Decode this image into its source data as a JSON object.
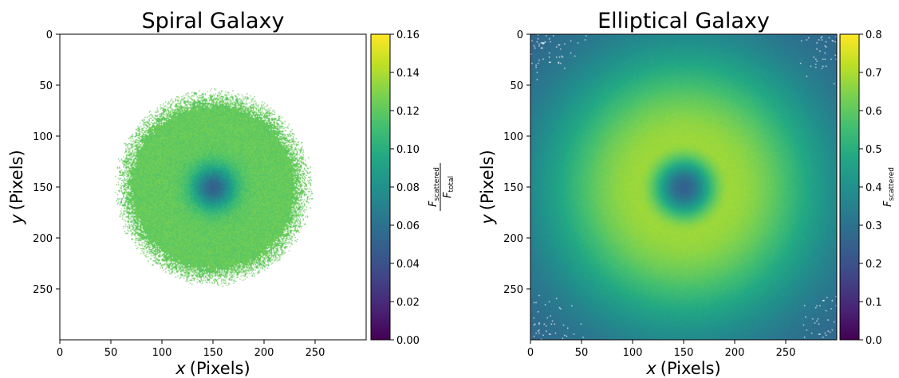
{
  "chart_data": [
    {
      "type": "heatmap",
      "title": "Spiral Galaxy",
      "xlabel": "x (Pixels)",
      "ylabel": "y (Pixels)",
      "xlabel_var": "x",
      "xlabel_unit": "(Pixels)",
      "ylabel_var": "y",
      "ylabel_unit": "(Pixels)",
      "xlim": [
        0,
        300
      ],
      "ylim": [
        300,
        0
      ],
      "x_ticks": [
        0,
        50,
        100,
        150,
        200,
        250
      ],
      "y_ticks": [
        0,
        50,
        100,
        150,
        200,
        250
      ],
      "image": {
        "center": [
          150,
          150
        ],
        "disk_radius": 88,
        "edge_scatter": 10,
        "base_value": 0.122,
        "core_value": 0.05,
        "core_radius": 14,
        "outside_value": null
      },
      "colorbar": {
        "label": "F_scattered / F_total",
        "label_numerator": "F",
        "label_numerator_sub": "scattered",
        "label_denominator": "F",
        "label_denominator_sub": "total",
        "range": [
          0.0,
          0.16
        ],
        "ticks": [
          "0.00",
          "0.02",
          "0.04",
          "0.06",
          "0.08",
          "0.10",
          "0.12",
          "0.14",
          "0.16"
        ],
        "colormap": "viridis"
      }
    },
    {
      "type": "heatmap",
      "title": "Elliptical Galaxy",
      "xlabel": "x (Pixels)",
      "ylabel": "y (Pixels)",
      "xlabel_var": "x",
      "xlabel_unit": "(Pixels)",
      "ylabel_var": "y",
      "ylabel_unit": "(Pixels)",
      "xlim": [
        0,
        300
      ],
      "ylim": [
        300,
        0
      ],
      "x_ticks": [
        0,
        50,
        100,
        150,
        200,
        250
      ],
      "y_ticks": [
        0,
        50,
        100,
        150,
        200,
        250
      ],
      "image": {
        "center": [
          150,
          150
        ],
        "peak_value": 0.68,
        "peak_radius": 45,
        "core_value": 0.25,
        "edge_value": 0.25,
        "corner_white_pixels": true
      },
      "colorbar": {
        "label": "F_scattered",
        "label_main": "F",
        "label_sub": "scattered",
        "range": [
          0.0,
          0.8
        ],
        "ticks": [
          "0.0",
          "0.1",
          "0.2",
          "0.3",
          "0.4",
          "0.5",
          "0.6",
          "0.7",
          "0.8"
        ],
        "colormap": "viridis"
      }
    }
  ]
}
